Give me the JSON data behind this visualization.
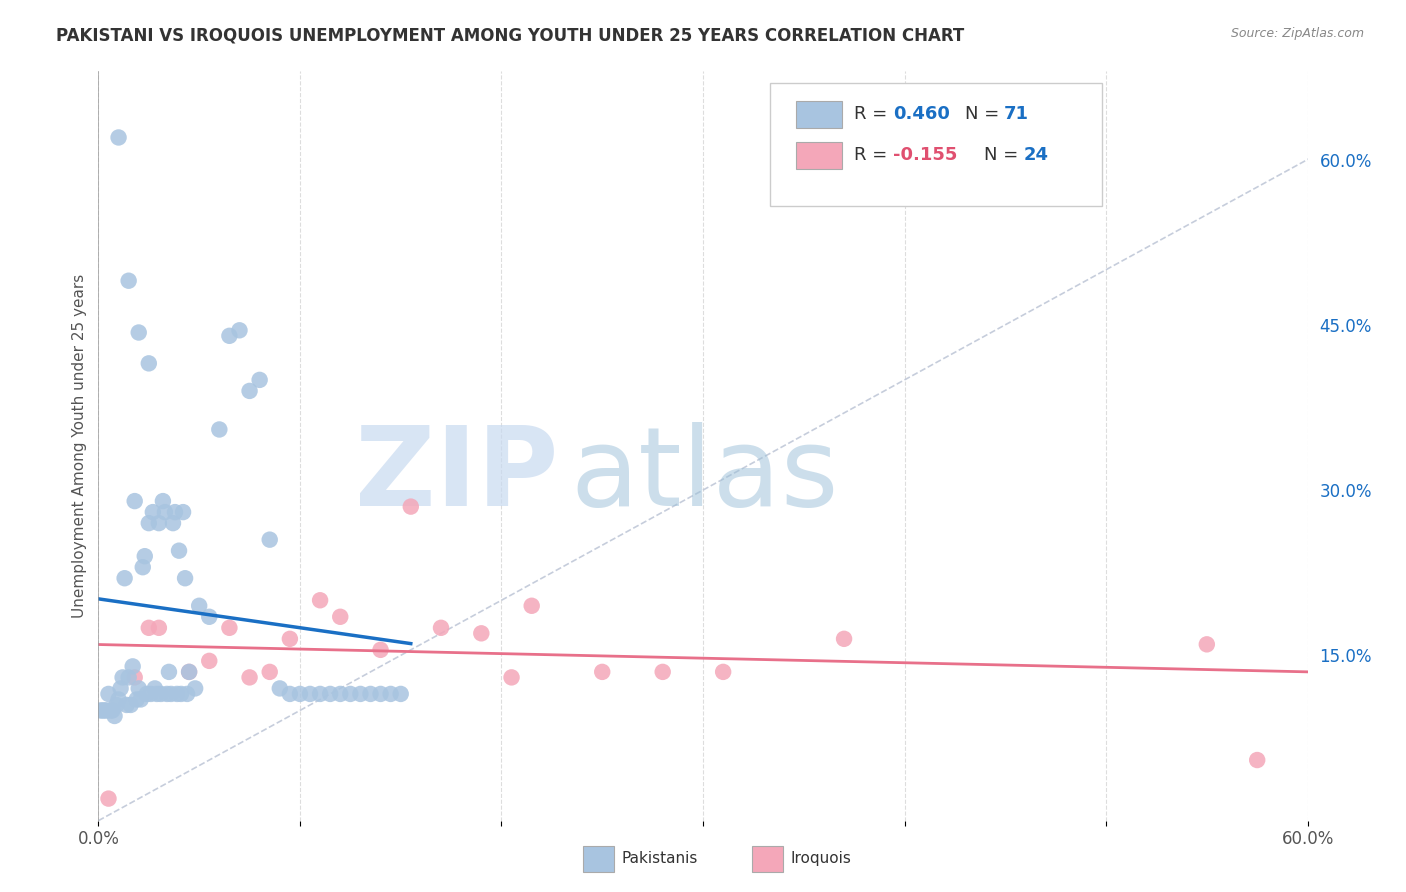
{
  "title": "PAKISTANI VS IROQUOIS UNEMPLOYMENT AMONG YOUTH UNDER 25 YEARS CORRELATION CHART",
  "source": "Source: ZipAtlas.com",
  "ylabel": "Unemployment Among Youth under 25 years",
  "xlim": [
    0.0,
    0.6
  ],
  "ylim": [
    0.0,
    0.68
  ],
  "R_pakistani": 0.46,
  "N_pakistani": 71,
  "R_iroquois": -0.155,
  "N_iroquois": 24,
  "pakistani_color": "#a8c4e0",
  "iroquois_color": "#f4a7b9",
  "pakistani_line_color": "#1a6fc4",
  "iroquois_line_color": "#e8708a",
  "diagonal_color": "#c0c8d8",
  "background_color": "#ffffff",
  "grid_color": "#dddddd",
  "pakistani_x": [
    0.005,
    0.007,
    0.008,
    0.009,
    0.01,
    0.011,
    0.012,
    0.013,
    0.014,
    0.015,
    0.016,
    0.017,
    0.018,
    0.019,
    0.02,
    0.021,
    0.022,
    0.023,
    0.024,
    0.025,
    0.026,
    0.027,
    0.028,
    0.029,
    0.03,
    0.031,
    0.032,
    0.033,
    0.034,
    0.035,
    0.036,
    0.037,
    0.038,
    0.039,
    0.04,
    0.041,
    0.042,
    0.043,
    0.044,
    0.045,
    0.003,
    0.004,
    0.006,
    0.002,
    0.001,
    0.048,
    0.05,
    0.055,
    0.06,
    0.065,
    0.07,
    0.075,
    0.08,
    0.085,
    0.09,
    0.095,
    0.1,
    0.105,
    0.11,
    0.115,
    0.12,
    0.125,
    0.13,
    0.135,
    0.14,
    0.145,
    0.15,
    0.01,
    0.015,
    0.02,
    0.025
  ],
  "pakistani_y": [
    0.115,
    0.1,
    0.095,
    0.105,
    0.11,
    0.12,
    0.13,
    0.22,
    0.105,
    0.13,
    0.105,
    0.14,
    0.29,
    0.11,
    0.12,
    0.11,
    0.23,
    0.24,
    0.115,
    0.27,
    0.115,
    0.28,
    0.12,
    0.115,
    0.27,
    0.115,
    0.29,
    0.28,
    0.115,
    0.135,
    0.115,
    0.27,
    0.28,
    0.115,
    0.245,
    0.115,
    0.28,
    0.22,
    0.115,
    0.135,
    0.1,
    0.1,
    0.1,
    0.1,
    0.1,
    0.12,
    0.195,
    0.185,
    0.355,
    0.44,
    0.445,
    0.39,
    0.4,
    0.255,
    0.12,
    0.115,
    0.115,
    0.115,
    0.115,
    0.115,
    0.115,
    0.115,
    0.115,
    0.115,
    0.115,
    0.115,
    0.115,
    0.62,
    0.49,
    0.443,
    0.415
  ],
  "iroquois_x": [
    0.005,
    0.018,
    0.025,
    0.03,
    0.045,
    0.055,
    0.065,
    0.075,
    0.085,
    0.095,
    0.11,
    0.12,
    0.14,
    0.155,
    0.17,
    0.19,
    0.205,
    0.215,
    0.25,
    0.28,
    0.31,
    0.37,
    0.55,
    0.575
  ],
  "iroquois_y": [
    0.02,
    0.13,
    0.175,
    0.175,
    0.135,
    0.145,
    0.175,
    0.13,
    0.135,
    0.165,
    0.2,
    0.185,
    0.155,
    0.285,
    0.175,
    0.17,
    0.13,
    0.195,
    0.135,
    0.135,
    0.135,
    0.165,
    0.16,
    0.055
  ]
}
